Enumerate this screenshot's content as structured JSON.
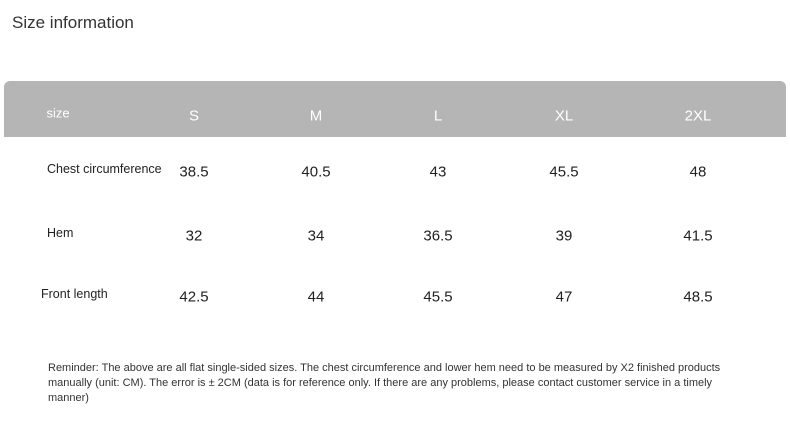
{
  "header": {
    "title": "Size information"
  },
  "table": {
    "columns": [
      "size",
      "S",
      "M",
      "L",
      "XL",
      "2XL"
    ],
    "rows": [
      [
        "Chest circumference",
        "38.5",
        "40.5",
        "43",
        "45.5",
        "48"
      ],
      [
        "Hem",
        "32",
        "34",
        "36.5",
        "39",
        "41.5"
      ],
      [
        "Front length",
        "42.5",
        "44",
        "45.5",
        "47",
        "48.5"
      ]
    ]
  },
  "reminder": "Reminder: The above are all flat single-sided sizes. The chest circumference and lower hem need to be measured by X2 finished products manually (unit: CM). The error is ± 2CM (data is for reference only. If there are any problems, please contact customer service in a timely manner)"
}
